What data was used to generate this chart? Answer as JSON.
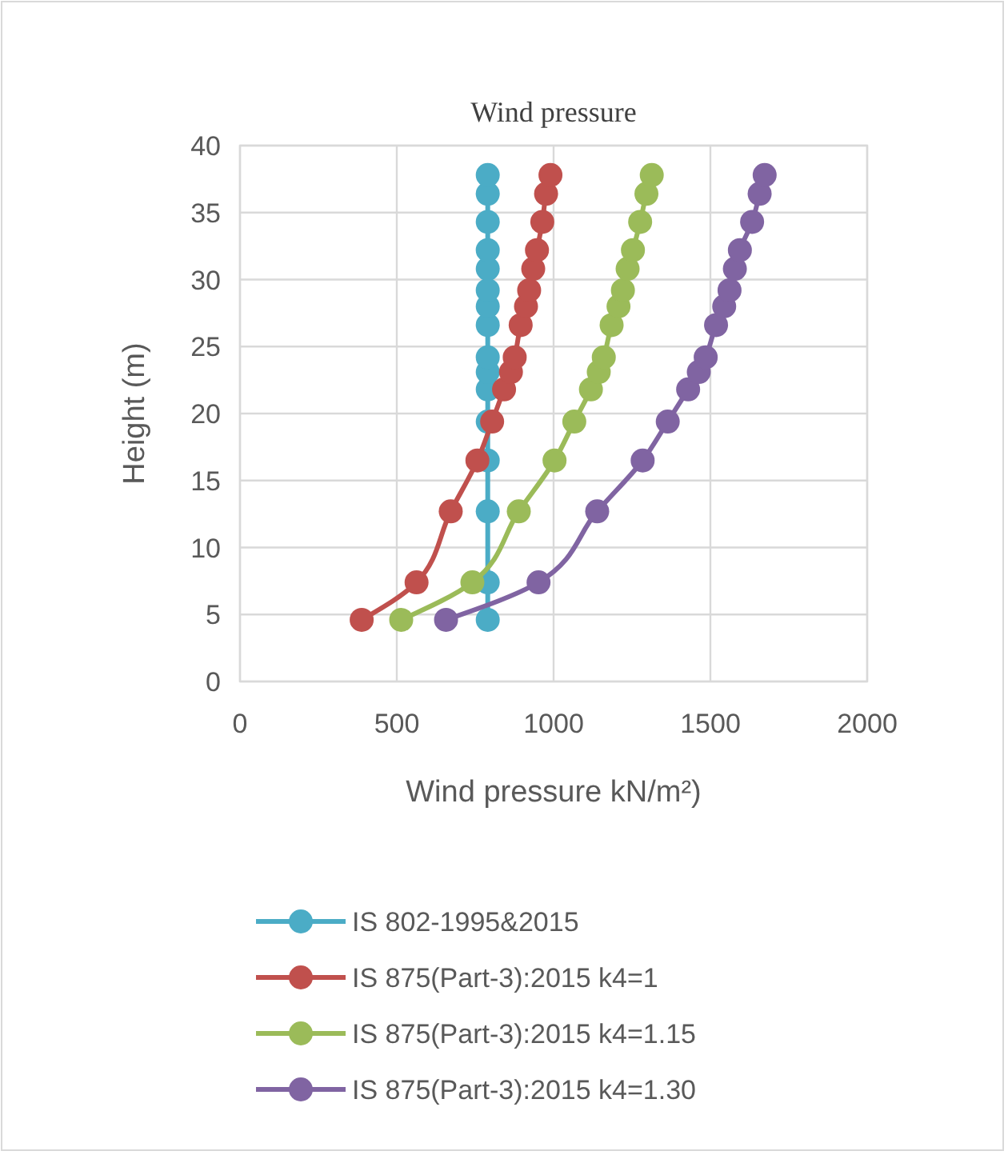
{
  "chart_data": {
    "type": "line",
    "title": "Wind pressure",
    "xlabel": "Wind pressure kN/m²)",
    "ylabel": "Height (m)",
    "xlim": [
      0,
      2000
    ],
    "xticks": [
      0,
      500,
      1000,
      1500,
      2000
    ],
    "ylim": [
      0,
      40
    ],
    "yticks": [
      0,
      5,
      10,
      15,
      20,
      25,
      30,
      35,
      40
    ],
    "grid": true,
    "legend": "bottom",
    "marker": "circle",
    "series": [
      {
        "name": "IS 802-1995&2015",
        "color": "#4bacc6",
        "x": [
          790,
          790,
          790,
          790,
          790,
          790,
          790,
          790,
          790,
          790,
          790,
          790,
          790,
          790,
          790,
          790
        ],
        "values": [
          4.6,
          7.4,
          12.7,
          16.5,
          19.4,
          21.8,
          23.1,
          24.2,
          26.6,
          28,
          29.2,
          30.8,
          32.2,
          34.3,
          36.4,
          37.8
        ]
      },
      {
        "name": "IS 875(Part-3):2015 k4=1",
        "color": "#c0504d",
        "x": [
          388,
          563,
          672,
          757,
          804,
          842,
          864,
          876,
          895,
          912,
          922,
          935,
          947,
          964,
          976,
          990
        ],
        "values": [
          4.6,
          7.4,
          12.7,
          16.5,
          19.4,
          21.8,
          23.1,
          24.2,
          26.6,
          28,
          29.2,
          30.8,
          32.2,
          34.3,
          36.4,
          37.8
        ]
      },
      {
        "name": "IS 875(Part-3):2015 k4=1.15",
        "color": "#9bbb59",
        "x": [
          514,
          741,
          889,
          1003,
          1066,
          1119,
          1144,
          1160,
          1185,
          1207,
          1221,
          1236,
          1253,
          1276,
          1296,
          1313
        ],
        "values": [
          4.6,
          7.4,
          12.7,
          16.5,
          19.4,
          21.8,
          23.1,
          24.2,
          26.6,
          28,
          29.2,
          30.8,
          32.2,
          34.3,
          36.4,
          37.8
        ]
      },
      {
        "name": "IS 875(Part-3):2015 k4=1.30",
        "color": "#8064a2",
        "x": [
          657,
          952,
          1139,
          1284,
          1364,
          1429,
          1463,
          1485,
          1518,
          1544,
          1561,
          1578,
          1594,
          1633,
          1657,
          1673
        ],
        "values": [
          4.6,
          7.4,
          12.7,
          16.5,
          19.4,
          21.8,
          23.1,
          24.2,
          26.6,
          28,
          29.2,
          30.8,
          32.2,
          34.3,
          36.4,
          37.8
        ]
      }
    ]
  }
}
